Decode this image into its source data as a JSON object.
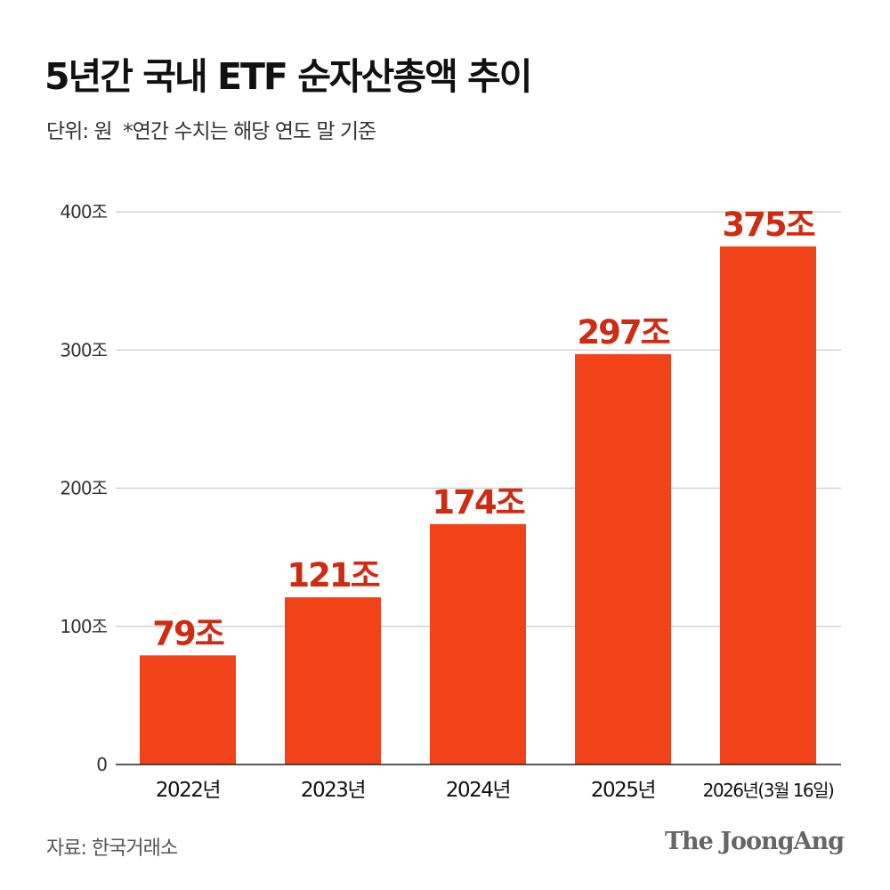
{
  "header": {
    "title": "5년간 국내 ETF 순자산총액 추이",
    "subtitle": "단위: 원  *연간 수치는 해당 연도 말 기준"
  },
  "footer": {
    "source": "자료: 한국거래소",
    "brand": "The JoongAng"
  },
  "colors": {
    "bar": "#f2421a",
    "value_label": "#cf2b12",
    "grid": "#cccccc",
    "axis": "#222222"
  },
  "chart_data": {
    "type": "bar",
    "title": "5년간 국내 ETF 순자산총액 추이",
    "xlabel": "",
    "ylabel": "단위: 원",
    "categories": [
      "2022년",
      "2023년",
      "2024년",
      "2025년",
      "2026년(3월 16일)"
    ],
    "values": [
      79,
      121,
      174,
      297,
      375
    ],
    "value_labels": [
      "79조",
      "121조",
      "174조",
      "297조",
      "375조"
    ],
    "ylim": [
      0,
      400
    ],
    "yticks": [
      0,
      100,
      200,
      300,
      400
    ],
    "ytick_labels": [
      "0",
      "100조",
      "200조",
      "300조",
      "400조"
    ],
    "grid": true
  }
}
